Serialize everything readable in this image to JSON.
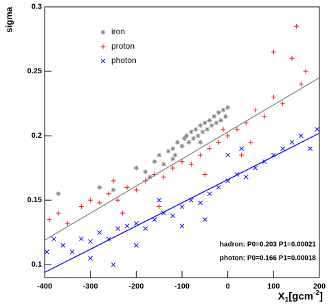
{
  "chart_data": {
    "type": "scatter",
    "y_label": "sigma",
    "x_label": {
      "base": "X",
      "sub": "1",
      "unit": "[gcm",
      "sup": "-2",
      "end": "]"
    },
    "xlim": [
      -400,
      200
    ],
    "ylim": [
      0.09,
      0.3
    ],
    "xticks": [
      -400,
      -300,
      -200,
      -100,
      0,
      100,
      200
    ],
    "yticks": [
      0.1,
      0.15,
      0.2,
      0.25,
      0.3
    ],
    "series": [
      {
        "name": "iron",
        "color": "#808080",
        "marker": "asterisk",
        "x": [
          -370,
          -280,
          -250,
          -200,
          -180,
          -160,
          -150,
          -140,
          -130,
          -120,
          -115,
          -110,
          -100,
          -95,
          -90,
          -85,
          -80,
          -75,
          -70,
          -65,
          -60,
          -55,
          -50,
          -45,
          -40,
          -35,
          -30,
          -25,
          -20,
          -15,
          -10,
          -5,
          0,
          -60,
          -120,
          -170
        ],
        "values": [
          0.155,
          0.16,
          0.158,
          0.175,
          0.172,
          0.18,
          0.185,
          0.178,
          0.188,
          0.19,
          0.185,
          0.195,
          0.192,
          0.198,
          0.2,
          0.195,
          0.203,
          0.198,
          0.205,
          0.2,
          0.208,
          0.203,
          0.21,
          0.205,
          0.212,
          0.208,
          0.215,
          0.21,
          0.218,
          0.212,
          0.22,
          0.215,
          0.222,
          0.195,
          0.182,
          0.168
        ]
      },
      {
        "name": "proton",
        "color": "#ff0000",
        "marker": "plus",
        "x": [
          -390,
          -370,
          -350,
          -320,
          -300,
          -280,
          -260,
          -240,
          -220,
          -200,
          -180,
          -160,
          -140,
          -120,
          -100,
          -80,
          -60,
          -40,
          -20,
          0,
          20,
          40,
          60,
          80,
          100,
          120,
          140,
          150,
          100,
          160,
          170,
          -150,
          -250,
          -50,
          30,
          -10,
          -230,
          50
        ],
        "values": [
          0.135,
          0.14,
          0.132,
          0.145,
          0.15,
          0.148,
          0.155,
          0.15,
          0.16,
          0.158,
          0.165,
          0.17,
          0.168,
          0.175,
          0.18,
          0.178,
          0.185,
          0.19,
          0.195,
          0.2,
          0.205,
          0.21,
          0.22,
          0.215,
          0.23,
          0.225,
          0.26,
          0.285,
          0.265,
          0.24,
          0.25,
          0.145,
          0.165,
          0.17,
          0.185,
          0.205,
          0.14,
          0.195
        ]
      },
      {
        "name": "photon",
        "color": "#0000ff",
        "marker": "cross",
        "x": [
          -395,
          -380,
          -360,
          -340,
          -320,
          -300,
          -280,
          -260,
          -240,
          -220,
          -200,
          -180,
          -160,
          -140,
          -120,
          -100,
          -80,
          -60,
          -40,
          -20,
          0,
          20,
          40,
          60,
          80,
          100,
          120,
          140,
          160,
          180,
          195,
          -200,
          -100,
          -50,
          0,
          30,
          -150,
          -300,
          -250
        ],
        "values": [
          0.11,
          0.12,
          0.115,
          0.11,
          0.12,
          0.118,
          0.125,
          0.12,
          0.128,
          0.13,
          0.132,
          0.128,
          0.135,
          0.14,
          0.138,
          0.145,
          0.15,
          0.148,
          0.155,
          0.16,
          0.165,
          0.17,
          0.168,
          0.175,
          0.18,
          0.185,
          0.19,
          0.195,
          0.2,
          0.19,
          0.205,
          0.115,
          0.13,
          0.135,
          0.185,
          0.19,
          0.15,
          0.105,
          0.1
        ]
      }
    ],
    "fits": [
      {
        "name": "hadron",
        "color": "#808080",
        "p0": 0.203,
        "p1": 0.00021,
        "label": "hadron: P0=0.203 P1=0.00021"
      },
      {
        "name": "photon",
        "color": "#0000ff",
        "p0": 0.166,
        "p1": 0.00018,
        "label": "photon: P0=0.166 P1=0.00018"
      }
    ]
  }
}
